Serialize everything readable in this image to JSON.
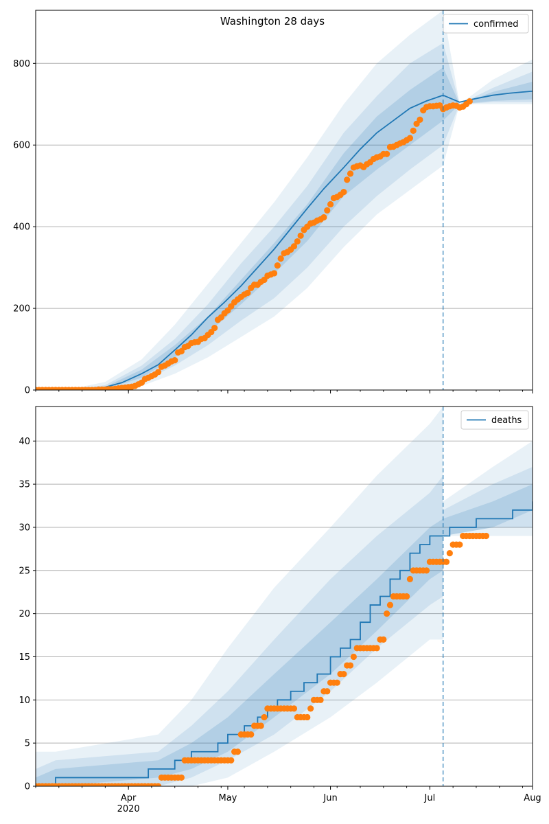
{
  "colors": {
    "model_line": "#1f77b4",
    "observed_points": "#ff7f0e",
    "band": "#1f77b4",
    "grid": "#b0b0b0",
    "vline": "#1f77b4"
  },
  "figure_title": "Washington 28 days",
  "x_axis": {
    "ticks": [
      {
        "date": "2020-04-01",
        "label": "Apr",
        "sublabel": "2020"
      },
      {
        "date": "2020-05-01",
        "label": "May",
        "sublabel": ""
      },
      {
        "date": "2020-06-01",
        "label": "Jun",
        "sublabel": ""
      },
      {
        "date": "2020-07-01",
        "label": "Jul",
        "sublabel": ""
      },
      {
        "date": "2020-08-01",
        "label": "Aug",
        "sublabel": ""
      }
    ]
  },
  "chart_data": [
    {
      "type": "line",
      "name": "confirmed-panel",
      "legend": [
        "confirmed"
      ],
      "legend_position": "top-right",
      "grid": "y",
      "xlim": [
        "2020-03-04",
        "2020-08-01"
      ],
      "ylim": [
        0,
        930
      ],
      "yticks": [
        0,
        200,
        400,
        600,
        800
      ],
      "forecast_start": "2020-07-05",
      "series": [
        {
          "name": "confirmed",
          "role": "model",
          "x": [
            "2020-03-04",
            "2020-03-10",
            "2020-03-20",
            "2020-03-25",
            "2020-03-30",
            "2020-04-05",
            "2020-04-10",
            "2020-04-15",
            "2020-04-20",
            "2020-04-25",
            "2020-04-30",
            "2020-05-05",
            "2020-05-10",
            "2020-05-15",
            "2020-05-20",
            "2020-05-25",
            "2020-05-30",
            "2020-06-05",
            "2020-06-10",
            "2020-06-15",
            "2020-06-20",
            "2020-06-25",
            "2020-06-30",
            "2020-07-05",
            "2020-07-10",
            "2020-07-15",
            "2020-07-20",
            "2020-07-25",
            "2020-08-01"
          ],
          "y": [
            0,
            0,
            2,
            7,
            18,
            40,
            62,
            98,
            135,
            178,
            215,
            255,
            300,
            345,
            395,
            445,
            493,
            545,
            590,
            630,
            660,
            690,
            708,
            722,
            705,
            714,
            722,
            727,
            732
          ]
        },
        {
          "name": "",
          "role": "observed",
          "x_start": "2020-03-04",
          "y": [
            0,
            0,
            0,
            0,
            0,
            0,
            0,
            0,
            0,
            0,
            0,
            0,
            0,
            0,
            0,
            0,
            0,
            0,
            0,
            1,
            1,
            1,
            2,
            2,
            3,
            4,
            5,
            6,
            7,
            8,
            10,
            14,
            18,
            27,
            30,
            34,
            38,
            44,
            57,
            60,
            65,
            70,
            73,
            92,
            95,
            105,
            108,
            115,
            117,
            118,
            125,
            127,
            135,
            142,
            152,
            172,
            178,
            188,
            195,
            205,
            215,
            222,
            228,
            234,
            238,
            250,
            258,
            258,
            265,
            270,
            280,
            283,
            286,
            305,
            322,
            335,
            338,
            344,
            352,
            364,
            378,
            392,
            400,
            408,
            410,
            415,
            418,
            423,
            440,
            455,
            470,
            473,
            478,
            485,
            515,
            530,
            545,
            548,
            550,
            546,
            553,
            558,
            566,
            570,
            572,
            578,
            578,
            595,
            596,
            600,
            604,
            607,
            612,
            617,
            635,
            652,
            662,
            685,
            693,
            695,
            695,
            696,
            697,
            688,
            692,
            695,
            697,
            696,
            692,
            694,
            700,
            707
          ]
        }
      ],
      "bands": [
        {
          "level": "outer",
          "x": [
            "2020-03-04",
            "2020-03-15",
            "2020-03-25",
            "2020-04-05",
            "2020-04-15",
            "2020-04-25",
            "2020-05-05",
            "2020-05-15",
            "2020-05-25",
            "2020-06-05",
            "2020-06-15",
            "2020-06-25",
            "2020-07-05",
            "2020-07-10",
            "2020-07-20",
            "2020-08-01"
          ],
          "lower": [
            0,
            0,
            0,
            10,
            40,
            80,
            130,
            180,
            250,
            350,
            430,
            490,
            550,
            700,
            700,
            700
          ],
          "upper": [
            0,
            3,
            20,
            75,
            160,
            260,
            360,
            460,
            570,
            700,
            800,
            870,
            930,
            700,
            760,
            810
          ]
        },
        {
          "level": "middle",
          "x": [
            "2020-03-04",
            "2020-03-15",
            "2020-03-25",
            "2020-04-05",
            "2020-04-15",
            "2020-04-25",
            "2020-05-05",
            "2020-05-15",
            "2020-05-25",
            "2020-06-05",
            "2020-06-15",
            "2020-06-25",
            "2020-07-05",
            "2020-07-10",
            "2020-07-20",
            "2020-08-01"
          ],
          "lower": [
            0,
            0,
            1,
            20,
            60,
            110,
            170,
            225,
            300,
            400,
            475,
            540,
            600,
            700,
            705,
            705
          ],
          "upper": [
            0,
            2,
            12,
            60,
            125,
            210,
            310,
            400,
            500,
            630,
            720,
            800,
            850,
            700,
            740,
            780
          ]
        },
        {
          "level": "inner",
          "x": [
            "2020-03-04",
            "2020-03-15",
            "2020-03-25",
            "2020-04-05",
            "2020-04-15",
            "2020-04-25",
            "2020-05-05",
            "2020-05-15",
            "2020-05-25",
            "2020-06-05",
            "2020-06-15",
            "2020-06-25",
            "2020-07-05",
            "2020-07-10",
            "2020-07-20",
            "2020-08-01"
          ],
          "lower": [
            0,
            0,
            2,
            30,
            80,
            140,
            210,
            285,
            365,
            475,
            540,
            600,
            660,
            700,
            708,
            712
          ],
          "upper": [
            0,
            1,
            8,
            50,
            110,
            180,
            270,
            360,
            455,
            580,
            670,
            735,
            790,
            700,
            730,
            755
          ]
        }
      ]
    },
    {
      "type": "line",
      "name": "deaths-panel",
      "legend": [
        "deaths"
      ],
      "legend_position": "top-right",
      "grid": "y",
      "xlim": [
        "2020-03-04",
        "2020-08-01"
      ],
      "ylim": [
        0,
        44
      ],
      "yticks": [
        0,
        5,
        10,
        15,
        20,
        25,
        30,
        35,
        40
      ],
      "xtick_labels_visible": true,
      "forecast_start": "2020-07-05",
      "series": [
        {
          "name": "deaths",
          "role": "model",
          "step": true,
          "x": [
            "2020-03-04",
            "2020-03-10",
            "2020-03-16",
            "2020-04-01",
            "2020-04-07",
            "2020-04-10",
            "2020-04-15",
            "2020-04-20",
            "2020-04-25",
            "2020-04-28",
            "2020-05-01",
            "2020-05-06",
            "2020-05-10",
            "2020-05-13",
            "2020-05-16",
            "2020-05-20",
            "2020-05-24",
            "2020-05-28",
            "2020-06-01",
            "2020-06-04",
            "2020-06-07",
            "2020-06-10",
            "2020-06-13",
            "2020-06-16",
            "2020-06-19",
            "2020-06-22",
            "2020-06-25",
            "2020-06-28",
            "2020-07-01",
            "2020-07-05",
            "2020-07-07",
            "2020-07-10",
            "2020-07-15",
            "2020-07-20",
            "2020-07-26",
            "2020-08-01"
          ],
          "y": [
            0,
            1,
            1,
            1,
            2,
            2,
            3,
            4,
            4,
            5,
            6,
            7,
            8,
            9,
            10,
            11,
            12,
            13,
            15,
            16,
            17,
            19,
            21,
            22,
            24,
            25,
            27,
            28,
            29,
            29,
            30,
            30,
            31,
            31,
            32,
            33
          ]
        },
        {
          "name": "",
          "role": "observed",
          "x_start": "2020-03-04",
          "y": [
            0,
            0,
            0,
            0,
            0,
            0,
            0,
            0,
            0,
            0,
            0,
            0,
            0,
            0,
            0,
            0,
            0,
            0,
            0,
            0,
            0,
            0,
            0,
            0,
            0,
            0,
            0,
            0,
            0,
            0,
            0,
            0,
            0,
            0,
            0,
            0,
            0,
            0,
            1,
            1,
            1,
            1,
            1,
            1,
            1,
            3,
            3,
            3,
            3,
            3,
            3,
            3,
            3,
            3,
            3,
            3,
            3,
            3,
            3,
            3,
            4,
            4,
            6,
            6,
            6,
            6,
            7,
            7,
            7,
            8,
            9,
            9,
            9,
            9,
            9,
            9,
            9,
            9,
            9,
            8,
            8,
            8,
            8,
            9,
            10,
            10,
            10,
            11,
            11,
            12,
            12,
            12,
            13,
            13,
            14,
            14,
            15,
            16,
            16,
            16,
            16,
            16,
            16,
            16,
            17,
            17,
            20,
            21,
            22,
            22,
            22,
            22,
            22,
            24,
            25,
            25,
            25,
            25,
            25,
            26,
            26,
            26,
            26,
            26,
            26,
            27,
            28,
            28,
            28,
            29,
            29,
            29,
            29,
            29,
            29,
            29,
            29
          ]
        }
      ],
      "bands": [
        {
          "level": "outer",
          "x": [
            "2020-03-04",
            "2020-03-10",
            "2020-04-10",
            "2020-04-20",
            "2020-05-01",
            "2020-05-15",
            "2020-06-01",
            "2020-06-15",
            "2020-07-01",
            "2020-07-05",
            "2020-07-05",
            "2020-07-20",
            "2020-08-01"
          ],
          "lower": [
            0,
            0,
            0,
            0,
            1,
            4,
            8,
            12,
            17,
            17,
            29,
            29,
            29
          ],
          "upper": [
            4,
            4,
            6,
            10,
            16,
            23,
            30,
            36,
            42,
            44,
            33,
            37,
            40
          ]
        },
        {
          "level": "middle",
          "x": [
            "2020-03-04",
            "2020-03-10",
            "2020-04-10",
            "2020-04-20",
            "2020-05-01",
            "2020-05-15",
            "2020-06-01",
            "2020-06-15",
            "2020-07-01",
            "2020-07-05",
            "2020-07-05",
            "2020-07-20",
            "2020-08-01"
          ],
          "lower": [
            0,
            0,
            0,
            1,
            3,
            6,
            11,
            16,
            21,
            22,
            29,
            30,
            30
          ],
          "upper": [
            2,
            3,
            4,
            7,
            11,
            17,
            24,
            29,
            34,
            36,
            32,
            35,
            37
          ]
        },
        {
          "level": "inner",
          "x": [
            "2020-03-04",
            "2020-03-10",
            "2020-04-10",
            "2020-04-20",
            "2020-05-01",
            "2020-05-15",
            "2020-06-01",
            "2020-06-15",
            "2020-07-01",
            "2020-07-05",
            "2020-07-05",
            "2020-07-20",
            "2020-08-01"
          ],
          "lower": [
            0,
            0,
            1,
            2,
            4,
            8,
            13,
            18,
            24,
            25,
            29,
            30,
            32
          ],
          "upper": [
            1,
            2,
            3,
            5,
            8,
            13,
            19,
            24,
            30,
            31,
            31,
            33,
            35
          ]
        }
      ]
    }
  ]
}
